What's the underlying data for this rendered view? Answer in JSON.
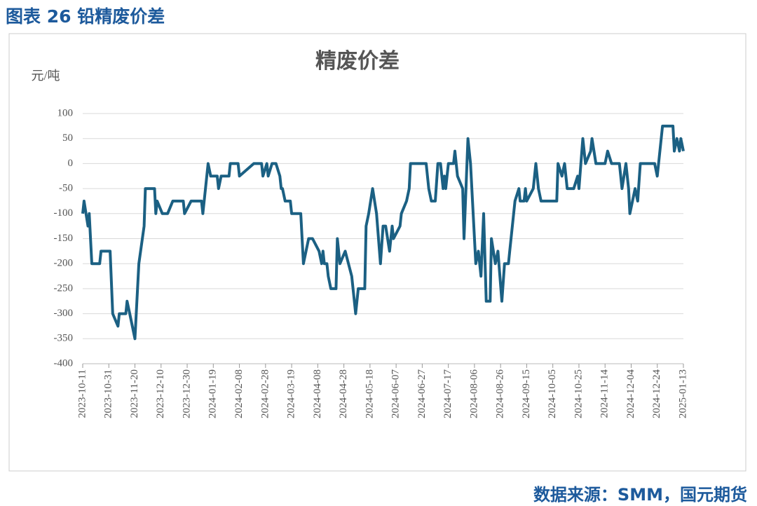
{
  "header": "图表 26 铅精废价差",
  "source": "数据来源：SMM，国元期货",
  "chart_data": {
    "type": "line",
    "title": "精废价差",
    "y_label": "元/吨",
    "x": [
      "2023-10-11",
      "2023-10-12",
      "2023-10-15",
      "2023-10-16",
      "2023-10-18",
      "2023-10-24",
      "2023-10-25",
      "2023-11-01",
      "2023-11-03",
      "2023-11-07",
      "2023-11-08",
      "2023-11-13",
      "2023-11-14",
      "2023-11-16",
      "2023-11-20",
      "2023-11-23",
      "2023-11-27",
      "2023-11-28",
      "2023-12-05",
      "2023-12-06",
      "2023-12-07",
      "2023-12-11",
      "2023-12-15",
      "2023-12-19",
      "2023-12-27",
      "2023-12-28",
      "2024-01-02",
      "2024-01-10",
      "2024-01-11",
      "2024-01-15",
      "2024-01-17",
      "2024-01-22",
      "2024-01-23",
      "2024-01-25",
      "2024-01-31",
      "2024-02-01",
      "2024-02-07",
      "2024-02-08",
      "2024-02-19",
      "2024-02-25",
      "2024-02-26",
      "2024-02-29",
      "2024-03-01",
      "2024-03-04",
      "2024-03-07",
      "2024-03-10",
      "2024-03-11",
      "2024-03-12",
      "2024-03-14",
      "2024-03-18",
      "2024-03-19",
      "2024-03-26",
      "2024-03-28",
      "2024-04-01",
      "2024-04-04",
      "2024-04-09",
      "2024-04-11",
      "2024-04-12",
      "2024-04-13",
      "2024-04-15",
      "2024-04-16",
      "2024-04-18",
      "2024-04-22",
      "2024-04-23",
      "2024-04-25",
      "2024-04-29",
      "2024-05-04",
      "2024-05-07",
      "2024-05-09",
      "2024-05-14",
      "2024-05-15",
      "2024-05-17",
      "2024-05-20",
      "2024-05-23",
      "2024-05-26",
      "2024-05-28",
      "2024-05-30",
      "2024-06-02",
      "2024-06-04",
      "2024-06-05",
      "2024-06-10",
      "2024-06-11",
      "2024-06-15",
      "2024-06-17",
      "2024-06-18",
      "2024-06-30",
      "2024-07-02",
      "2024-07-04",
      "2024-07-07",
      "2024-07-09",
      "2024-07-11",
      "2024-07-13",
      "2024-07-14",
      "2024-07-15",
      "2024-07-17",
      "2024-07-21",
      "2024-07-22",
      "2024-07-24",
      "2024-07-28",
      "2024-07-29",
      "2024-08-01",
      "2024-08-03",
      "2024-08-07",
      "2024-08-09",
      "2024-08-11",
      "2024-08-13",
      "2024-08-15",
      "2024-08-18",
      "2024-08-19",
      "2024-08-22",
      "2024-08-24",
      "2024-08-27",
      "2024-08-29",
      "2024-09-01",
      "2024-09-02",
      "2024-09-06",
      "2024-09-09",
      "2024-09-10",
      "2024-09-13",
      "2024-09-14",
      "2024-09-15",
      "2024-09-20",
      "2024-09-22",
      "2024-09-24",
      "2024-09-26",
      "2024-10-08",
      "2024-10-09",
      "2024-10-12",
      "2024-10-14",
      "2024-10-16",
      "2024-10-21",
      "2024-10-24",
      "2024-10-25",
      "2024-10-28",
      "2024-10-30",
      "2024-11-03",
      "2024-11-04",
      "2024-11-07",
      "2024-11-14",
      "2024-11-16",
      "2024-11-19",
      "2024-11-25",
      "2024-11-27",
      "2024-11-30",
      "2024-12-02",
      "2024-12-03",
      "2024-12-07",
      "2024-12-09",
      "2024-12-11",
      "2024-12-15",
      "2024-12-22",
      "2024-12-24",
      "2024-12-28",
      "2025-01-05",
      "2025-01-06",
      "2025-01-08",
      "2025-01-10",
      "2025-01-11",
      "2025-01-13"
    ],
    "series": [
      {
        "name": "精废价差",
        "color": "#1b6083",
        "values": [
          -100,
          -75,
          -125,
          -100,
          -200,
          -200,
          -175,
          -175,
          -300,
          -325,
          -300,
          -300,
          -275,
          -300,
          -350,
          -200,
          -125,
          -50,
          -50,
          -100,
          -75,
          -100,
          -100,
          -75,
          -75,
          -100,
          -75,
          -75,
          -100,
          0,
          -25,
          -25,
          -50,
          -25,
          -25,
          0,
          0,
          -25,
          0,
          0,
          -25,
          0,
          -25,
          0,
          0,
          -25,
          -50,
          -50,
          -75,
          -75,
          -100,
          -100,
          -200,
          -150,
          -150,
          -175,
          -200,
          -175,
          -200,
          -200,
          -225,
          -250,
          -250,
          -150,
          -200,
          -175,
          -225,
          -300,
          -250,
          -250,
          -125,
          -100,
          -50,
          -100,
          -200,
          -125,
          -125,
          -175,
          -125,
          -150,
          -125,
          -100,
          -75,
          -50,
          0,
          0,
          -50,
          -75,
          -75,
          0,
          0,
          -50,
          -25,
          -50,
          0,
          0,
          25,
          -25,
          -50,
          -150,
          50,
          0,
          -200,
          -175,
          -225,
          -100,
          -275,
          -275,
          -150,
          -200,
          -175,
          -275,
          -200,
          -200,
          -175,
          -75,
          -50,
          -75,
          -75,
          -50,
          -75,
          -50,
          0,
          -50,
          -75,
          -75,
          0,
          -25,
          0,
          -50,
          -50,
          -25,
          -50,
          50,
          0,
          25,
          50,
          0,
          0,
          25,
          0,
          0,
          -50,
          0,
          -50,
          -100,
          -50,
          -75,
          0,
          0,
          0,
          -25,
          75,
          75,
          25,
          50,
          25,
          50,
          25
        ]
      }
    ],
    "xlim": [
      "2023-10-11",
      "2025-01-13"
    ],
    "xticks": [
      "2023-10-11",
      "2023-10-31",
      "2023-11-20",
      "2023-12-10",
      "2023-12-30",
      "2024-01-19",
      "2024-02-08",
      "2024-02-28",
      "2024-03-19",
      "2024-04-08",
      "2024-04-28",
      "2024-05-18",
      "2024-06-07",
      "2024-06-27",
      "2024-07-17",
      "2024-08-06",
      "2024-08-26",
      "2024-09-15",
      "2024-10-05",
      "2024-10-25",
      "2024-11-14",
      "2024-12-04",
      "2024-12-24",
      "2025-01-13"
    ],
    "ylim": [
      -400,
      100
    ],
    "yticks": [
      -400,
      -350,
      -300,
      -250,
      -200,
      -150,
      -100,
      -50,
      0,
      50,
      100
    ],
    "grid": true
  }
}
